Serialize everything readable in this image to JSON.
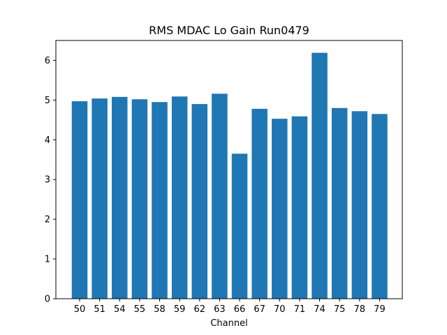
{
  "chart_data": {
    "type": "bar",
    "title": "RMS MDAC Lo Gain Run0479",
    "xlabel": "Channel",
    "ylabel": "",
    "categories": [
      "50",
      "51",
      "54",
      "55",
      "58",
      "59",
      "62",
      "63",
      "66",
      "67",
      "70",
      "71",
      "74",
      "75",
      "78",
      "79"
    ],
    "values": [
      4.97,
      5.04,
      5.08,
      5.02,
      4.95,
      5.09,
      4.9,
      5.16,
      3.65,
      4.78,
      4.53,
      4.59,
      6.19,
      4.8,
      4.72,
      4.65
    ],
    "ylim": [
      0,
      6.5
    ],
    "yticks": [
      "0",
      "1",
      "2",
      "3",
      "4",
      "5",
      "6"
    ],
    "bar_color": "#1f77b4",
    "grid": false,
    "legend": "none"
  }
}
